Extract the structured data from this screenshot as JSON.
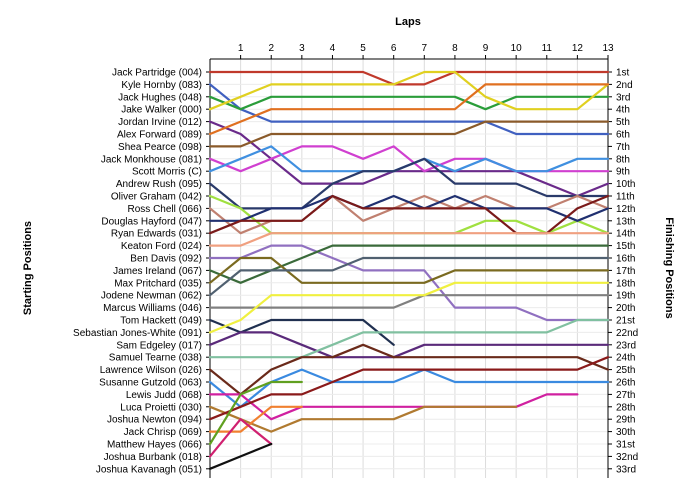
{
  "chart_data": {
    "type": "line",
    "title": "",
    "xlabel": "Laps",
    "ylabel_left": "Starting Positions",
    "ylabel_right": "Finishing Positions",
    "laps": [
      1,
      2,
      3,
      4,
      5,
      6,
      7,
      8,
      9,
      10,
      11,
      12,
      13
    ],
    "grid": true,
    "drivers": [
      "Jack Partridge (004)",
      "Kyle Hornby (083)",
      "Jack Hughes (048)",
      "Jake Walker (000)",
      "Jordan Irvine (012)",
      "Alex Forward (089)",
      "Shea Pearce (098)",
      "Jack Monkhouse (081)",
      "Scott Morris (C)",
      "Andrew Rush (095)",
      "Oliver Graham (042)",
      "Ross Chell (066)",
      "Douglas Hayford (047)",
      "Ryan Edwards (031)",
      "Keaton Ford (024)",
      "Ben Davis (092)",
      "James Ireland (067)",
      "Max Pritchard (035)",
      "Jodene Newman (062)",
      "Marcus Williams (046)",
      "Tom Hackett (049)",
      "Sebastian Jones-White (091)",
      "Sam Edgeley (017)",
      "Samuel Tearne (038)",
      "Lawrence Wilson (026)",
      "Susanne Gutzold (063)",
      "Lewis Judd (068)",
      "Luca Proietti (030)",
      "Joshua Newton (094)",
      "Jack Chrisp (069)",
      "Matthew Hayes (066)",
      "Joshua Burbank (018)",
      "Joshua Kavanagh (051)"
    ],
    "finishing_labels": [
      "1st",
      "2nd",
      "3rd",
      "4th",
      "5th",
      "6th",
      "7th",
      "8th",
      "9th",
      "10th",
      "11th",
      "12th",
      "13th",
      "14th",
      "15th",
      "16th",
      "17th",
      "18th",
      "19th",
      "20th",
      "21st",
      "22nd",
      "23rd",
      "24th",
      "25th",
      "26th",
      "27th",
      "28th",
      "29th",
      "30th",
      "31st",
      "32nd",
      "33rd"
    ],
    "series": [
      {
        "color": "#c0392b",
        "positions": [
          1,
          1,
          1,
          1,
          1,
          1,
          2,
          2,
          1,
          1,
          1,
          1,
          1,
          1
        ]
      },
      {
        "color": "#4060c0",
        "positions": [
          2,
          4,
          5,
          5,
          5,
          5,
          5,
          5,
          5,
          5,
          6,
          6,
          6,
          6
        ]
      },
      {
        "color": "#2a9d3a",
        "positions": [
          3,
          4,
          3,
          3,
          3,
          3,
          3,
          3,
          3,
          4,
          3,
          3,
          3,
          3
        ]
      },
      {
        "color": "#e0d020",
        "positions": [
          4,
          3,
          2,
          2,
          2,
          2,
          2,
          1,
          1,
          3,
          4,
          4,
          4,
          2
        ]
      },
      {
        "color": "#6a2a8a",
        "positions": [
          5,
          6,
          8,
          10,
          10,
          10,
          9,
          9,
          9,
          9,
          9,
          10,
          11,
          10
        ]
      },
      {
        "color": "#e07020",
        "positions": [
          6,
          5,
          4,
          4,
          4,
          4,
          4,
          4,
          4,
          2,
          2,
          2,
          2,
          2
        ]
      },
      {
        "color": "#8a5a2a",
        "positions": [
          7,
          7,
          6,
          6,
          6,
          6,
          6,
          6,
          6,
          5,
          5,
          5,
          5,
          5
        ]
      },
      {
        "color": "#d040d0",
        "positions": [
          8,
          9,
          8,
          7,
          7,
          8,
          7,
          9,
          8,
          8,
          9,
          9,
          9,
          9
        ]
      },
      {
        "color": "#4090e0",
        "positions": [
          9,
          8,
          7,
          9,
          9,
          9,
          9,
          8,
          9,
          8,
          9,
          9,
          8,
          8
        ]
      },
      {
        "color": "#2a3a6a",
        "positions": [
          10,
          12,
          12,
          12,
          10,
          9,
          9,
          8,
          10,
          10,
          10,
          11,
          11,
          11
        ]
      },
      {
        "color": "#a0e040",
        "positions": [
          11,
          12,
          14,
          14,
          14,
          14,
          14,
          14,
          14,
          13,
          13,
          14,
          13,
          14
        ]
      },
      {
        "color": "#c08070",
        "positions": [
          12,
          14,
          13,
          13,
          11,
          13,
          12,
          11,
          12,
          11,
          12,
          12,
          11,
          12
        ]
      },
      {
        "color": "#203070",
        "positions": [
          13,
          13,
          12,
          12,
          11,
          12,
          11,
          12,
          11,
          12,
          12,
          12,
          13,
          12
        ]
      },
      {
        "color": "#7a1a1a",
        "positions": [
          14,
          13,
          13,
          13,
          11,
          12,
          12,
          12,
          12,
          12,
          14,
          14,
          12,
          11
        ]
      },
      {
        "color": "#f0a080",
        "positions": [
          15,
          15,
          14,
          14,
          14,
          14,
          14,
          14,
          14,
          14,
          14,
          14,
          14,
          14
        ]
      },
      {
        "color": "#9070c0",
        "positions": [
          16,
          16,
          15,
          15,
          16,
          17,
          17,
          17,
          20,
          20,
          20,
          21,
          21,
          21
        ]
      },
      {
        "color": "#3a6a3a",
        "positions": [
          17,
          18,
          17,
          16,
          15,
          15,
          15,
          15,
          15,
          15,
          15,
          15,
          15,
          15
        ]
      },
      {
        "color": "#7a6a20",
        "positions": [
          18,
          16,
          16,
          18,
          18,
          18,
          18,
          18,
          17,
          17,
          17,
          17,
          17,
          17
        ]
      },
      {
        "color": "#506070",
        "positions": [
          19,
          17,
          17,
          17,
          17,
          16,
          16,
          16,
          16,
          16,
          16,
          16,
          16,
          16
        ]
      },
      {
        "color": "#808080",
        "positions": [
          20,
          20,
          20,
          20,
          20,
          20,
          20,
          19,
          19,
          19,
          19,
          19,
          19,
          19
        ]
      },
      {
        "color": "#203050",
        "positions": [
          21,
          22,
          21,
          21,
          21,
          21,
          23,
          null,
          null,
          null,
          null,
          null,
          null,
          null
        ]
      },
      {
        "color": "#f0f040",
        "positions": [
          22,
          21,
          19,
          19,
          19,
          19,
          19,
          19,
          18,
          18,
          18,
          18,
          18,
          18
        ]
      },
      {
        "color": "#5a2a7a",
        "positions": [
          23,
          22,
          22,
          23,
          24,
          24,
          24,
          23,
          23,
          23,
          23,
          23,
          23,
          23
        ]
      },
      {
        "color": "#80c0a0",
        "positions": [
          24,
          24,
          24,
          24,
          23,
          22,
          22,
          22,
          22,
          22,
          22,
          22,
          21,
          21
        ]
      },
      {
        "color": "#6a2a1a",
        "positions": [
          25,
          27,
          25,
          24,
          24,
          23,
          24,
          24,
          24,
          24,
          24,
          24,
          24,
          25
        ]
      },
      {
        "color": "#3a8ae0",
        "positions": [
          26,
          28,
          26,
          25,
          26,
          26,
          26,
          25,
          26,
          26,
          26,
          26,
          26,
          26
        ]
      },
      {
        "color": "#d020a0",
        "positions": [
          27,
          27,
          29,
          28,
          28,
          28,
          28,
          28,
          28,
          28,
          28,
          27,
          27,
          null
        ]
      },
      {
        "color": "#b07a30",
        "positions": [
          28,
          29,
          30,
          29,
          29,
          29,
          29,
          28,
          28,
          28,
          28,
          null,
          null,
          null
        ]
      },
      {
        "color": "#8a1a1a",
        "positions": [
          29,
          28,
          27,
          27,
          26,
          25,
          25,
          25,
          25,
          25,
          25,
          25,
          25,
          24
        ]
      },
      {
        "color": "#f08030",
        "positions": [
          30,
          30,
          28,
          28,
          null,
          null,
          null,
          null,
          null,
          null,
          null,
          null,
          null,
          null
        ]
      },
      {
        "color": "#60a020",
        "positions": [
          31,
          27,
          26,
          26,
          null,
          null,
          null,
          null,
          null,
          null,
          null,
          null,
          null,
          null
        ]
      },
      {
        "color": "#d02070",
        "positions": [
          32,
          29,
          31,
          null,
          null,
          null,
          null,
          null,
          null,
          null,
          null,
          null,
          null,
          null
        ]
      },
      {
        "color": "#101010",
        "positions": [
          33,
          32,
          31,
          null,
          null,
          null,
          null,
          null,
          null,
          null,
          null,
          null,
          null,
          null
        ]
      }
    ]
  }
}
